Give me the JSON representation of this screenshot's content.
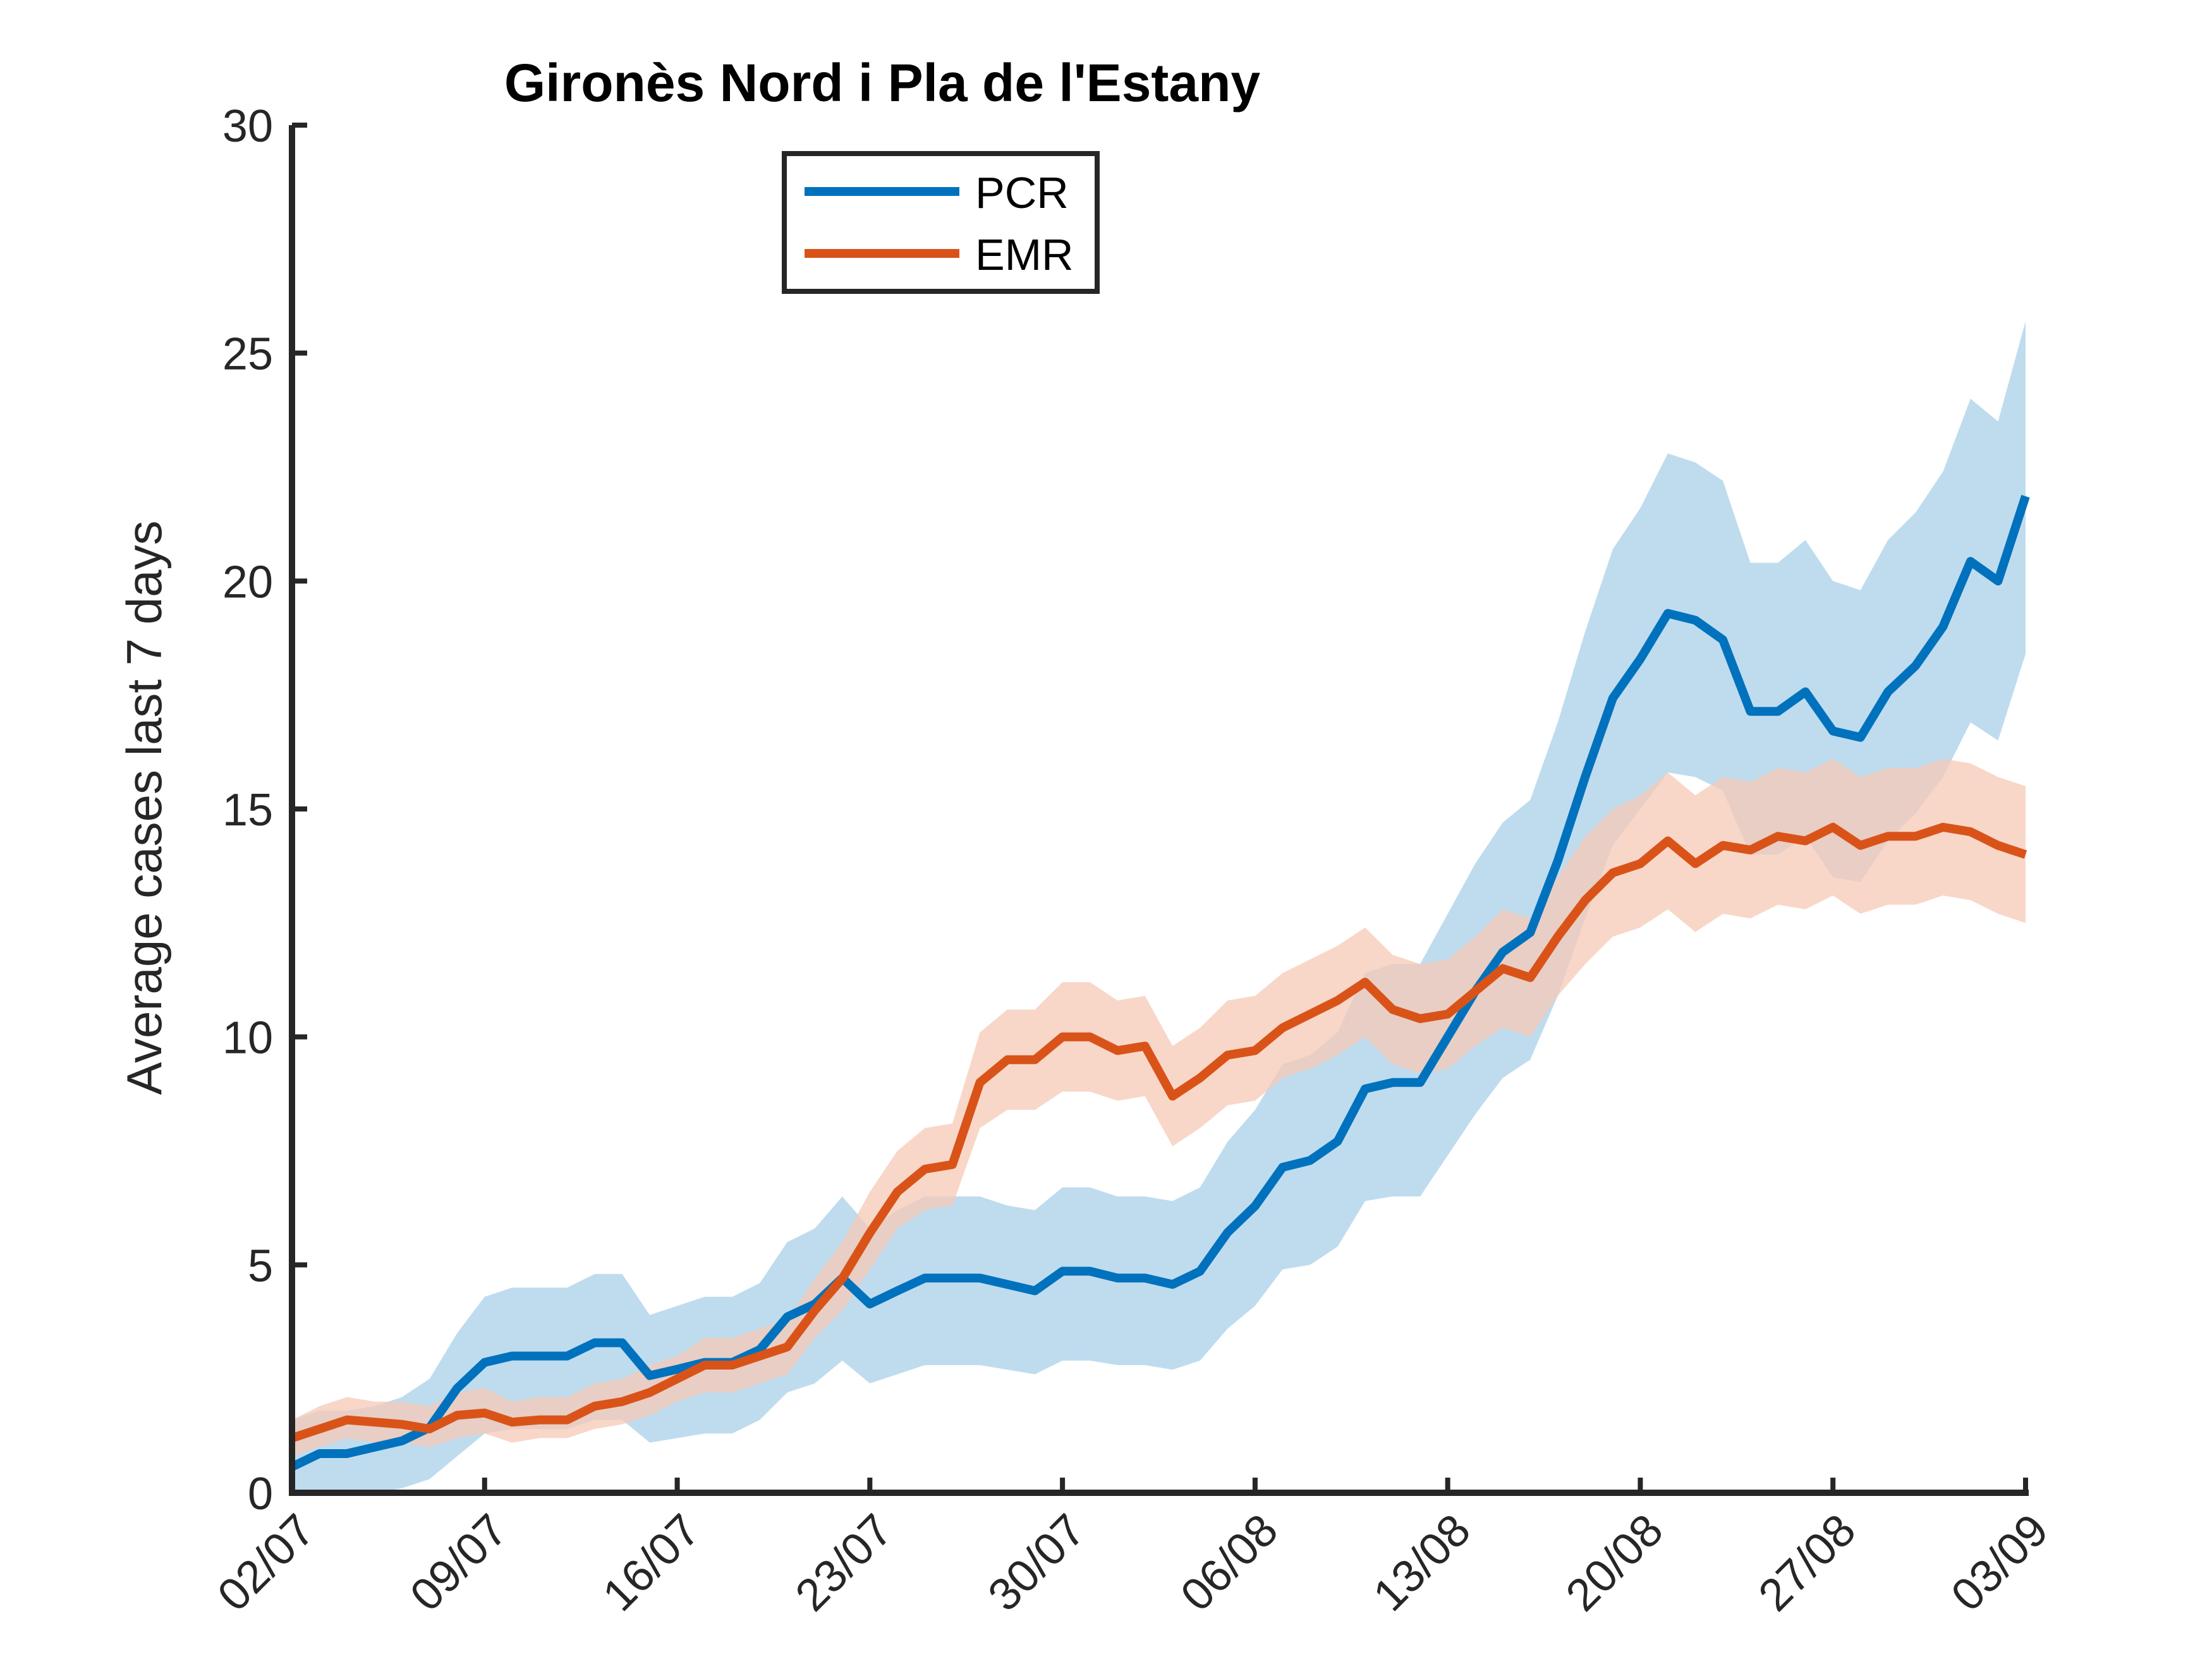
{
  "chart_data": {
    "type": "line",
    "title": "Gironès Nord i Pla de l'Estany",
    "xlabel": "",
    "ylabel": "Average cases last 7 days",
    "ylim": [
      0,
      30
    ],
    "yticks": [
      0,
      5,
      10,
      15,
      20,
      25,
      30
    ],
    "x_start": "2020-07-02",
    "x_end": "2020-09-03",
    "xtick_labels": [
      "02/07",
      "09/07",
      "16/07",
      "23/07",
      "30/07",
      "06/08",
      "13/08",
      "20/08",
      "27/08",
      "03/09"
    ],
    "legend_position": "top-left",
    "grid": false,
    "series": [
      {
        "name": "PCR",
        "color": "#0072BD",
        "band_color": "#A9D0EA",
        "values": [
          0.57,
          0.86,
          0.86,
          1.0,
          1.14,
          1.43,
          2.29,
          2.86,
          3.0,
          3.0,
          3.0,
          3.29,
          3.29,
          2.57,
          2.71,
          2.86,
          2.86,
          3.14,
          3.86,
          4.14,
          4.71,
          4.14,
          4.43,
          4.71,
          4.71,
          4.71,
          4.57,
          4.43,
          4.86,
          4.86,
          4.71,
          4.71,
          4.57,
          4.86,
          5.71,
          6.29,
          7.14,
          7.29,
          7.71,
          8.86,
          9.0,
          9.0,
          10.0,
          11.0,
          11.86,
          12.29,
          13.86,
          15.71,
          17.43,
          18.29,
          19.29,
          19.14,
          18.71,
          17.14,
          17.14,
          17.57,
          16.71,
          16.57,
          17.57,
          18.14,
          19.0,
          20.43,
          20.0,
          21.86
        ],
        "lower": [
          0.0,
          0.0,
          0.0,
          0.0,
          0.1,
          0.3,
          0.8,
          1.3,
          1.4,
          1.4,
          1.4,
          1.6,
          1.6,
          1.1,
          1.2,
          1.3,
          1.3,
          1.6,
          2.2,
          2.4,
          2.9,
          2.4,
          2.6,
          2.8,
          2.8,
          2.8,
          2.7,
          2.6,
          2.9,
          2.9,
          2.8,
          2.8,
          2.7,
          2.9,
          3.6,
          4.1,
          4.9,
          5.0,
          5.4,
          6.4,
          6.5,
          6.5,
          7.4,
          8.3,
          9.1,
          9.5,
          10.9,
          12.6,
          14.2,
          15.0,
          15.8,
          15.7,
          15.4,
          14.0,
          14.0,
          14.4,
          13.5,
          13.4,
          14.3,
          14.9,
          15.7,
          16.9,
          16.5,
          18.4
        ],
        "upper": [
          1.6,
          1.8,
          1.8,
          1.9,
          2.1,
          2.5,
          3.5,
          4.3,
          4.5,
          4.5,
          4.5,
          4.8,
          4.8,
          3.9,
          4.1,
          4.3,
          4.3,
          4.6,
          5.5,
          5.8,
          6.5,
          5.8,
          6.2,
          6.5,
          6.5,
          6.5,
          6.3,
          6.2,
          6.7,
          6.7,
          6.5,
          6.5,
          6.4,
          6.7,
          7.7,
          8.4,
          9.4,
          9.6,
          10.1,
          11.4,
          11.6,
          11.6,
          12.7,
          13.8,
          14.7,
          15.2,
          16.9,
          18.9,
          20.7,
          21.6,
          22.8,
          22.6,
          22.2,
          20.4,
          20.4,
          20.9,
          20.0,
          19.8,
          20.9,
          21.5,
          22.4,
          24.0,
          23.5,
          25.7
        ]
      },
      {
        "name": "EMR",
        "color": "#D95319",
        "band_color": "#F6C9B5",
        "values": [
          1.2,
          1.4,
          1.6,
          1.55,
          1.5,
          1.4,
          1.7,
          1.75,
          1.55,
          1.6,
          1.6,
          1.9,
          2.0,
          2.2,
          2.5,
          2.8,
          2.8,
          3.0,
          3.2,
          4.0,
          4.7,
          5.7,
          6.6,
          7.1,
          7.2,
          9.0,
          9.5,
          9.5,
          10.0,
          10.0,
          9.7,
          9.8,
          8.7,
          9.1,
          9.6,
          9.7,
          10.2,
          10.5,
          10.8,
          11.2,
          10.6,
          10.4,
          10.5,
          11.0,
          11.5,
          11.3,
          12.2,
          13.0,
          13.6,
          13.8,
          14.3,
          13.8,
          14.2,
          14.1,
          14.4,
          14.3,
          14.6,
          14.2,
          14.4,
          14.4,
          14.6,
          14.5,
          14.2,
          14.0
        ],
        "lower": [
          0.8,
          1.0,
          1.2,
          1.1,
          1.1,
          1.0,
          1.2,
          1.3,
          1.1,
          1.2,
          1.2,
          1.4,
          1.5,
          1.7,
          2.0,
          2.2,
          2.2,
          2.4,
          2.6,
          3.4,
          4.0,
          4.9,
          5.8,
          6.2,
          6.3,
          8.0,
          8.4,
          8.4,
          8.8,
          8.8,
          8.6,
          8.7,
          7.6,
          8.0,
          8.5,
          8.6,
          9.1,
          9.3,
          9.6,
          10.0,
          9.4,
          9.2,
          9.3,
          9.8,
          10.2,
          10.0,
          10.9,
          11.6,
          12.2,
          12.4,
          12.8,
          12.3,
          12.7,
          12.6,
          12.9,
          12.8,
          13.1,
          12.7,
          12.9,
          12.9,
          13.1,
          13.0,
          12.7,
          12.5
        ],
        "upper": [
          1.6,
          1.9,
          2.1,
          2.0,
          2.0,
          1.9,
          2.2,
          2.3,
          2.0,
          2.1,
          2.1,
          2.4,
          2.5,
          2.8,
          3.0,
          3.4,
          3.4,
          3.6,
          3.8,
          4.7,
          5.5,
          6.6,
          7.5,
          8.0,
          8.1,
          10.1,
          10.6,
          10.6,
          11.2,
          11.2,
          10.8,
          10.9,
          9.8,
          10.2,
          10.8,
          10.9,
          11.4,
          11.7,
          12.0,
          12.4,
          11.8,
          11.6,
          11.7,
          12.2,
          12.8,
          12.6,
          13.5,
          14.4,
          15.0,
          15.3,
          15.8,
          15.3,
          15.7,
          15.6,
          15.9,
          15.8,
          16.1,
          15.7,
          15.9,
          15.9,
          16.1,
          16.0,
          15.7,
          15.5
        ]
      }
    ]
  }
}
